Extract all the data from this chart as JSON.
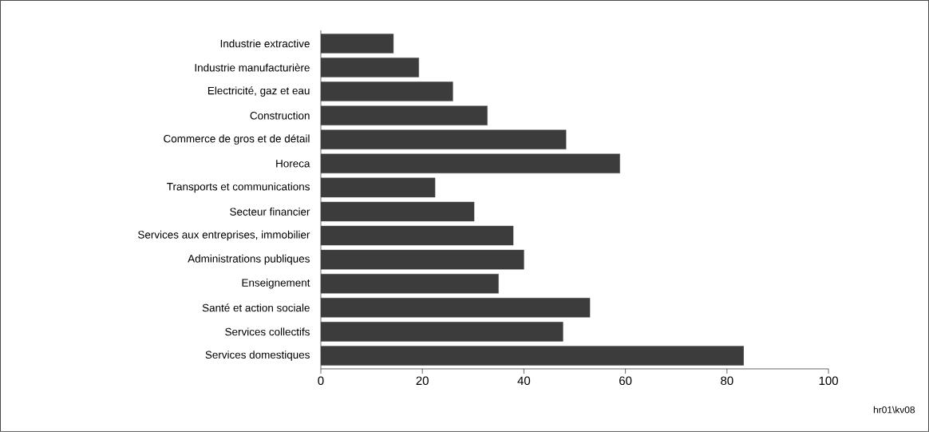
{
  "chart_data": {
    "type": "bar",
    "orientation": "horizontal",
    "categories": [
      "Industrie extractive",
      "Industrie manufacturière",
      "Electricité, gaz et eau",
      "Construction",
      "Commerce de gros et de détail",
      "Horeca",
      "Transports et communications",
      "Secteur financier",
      "Services aux entreprises, immobilier",
      "Administrations publiques",
      "Enseignement",
      "Santé et action sociale",
      "Services collectifs",
      "Services domestiques"
    ],
    "values": [
      14.3,
      19.3,
      26.0,
      32.8,
      48.3,
      58.9,
      22.5,
      30.2,
      37.9,
      40.0,
      35.0,
      53.0,
      47.7,
      83.3
    ],
    "color": "#3c3c3c",
    "xlim": [
      0,
      100
    ],
    "xticks": [
      0,
      20,
      40,
      60,
      80,
      100
    ],
    "annotations": [
      "hr01\\kv08"
    ]
  }
}
